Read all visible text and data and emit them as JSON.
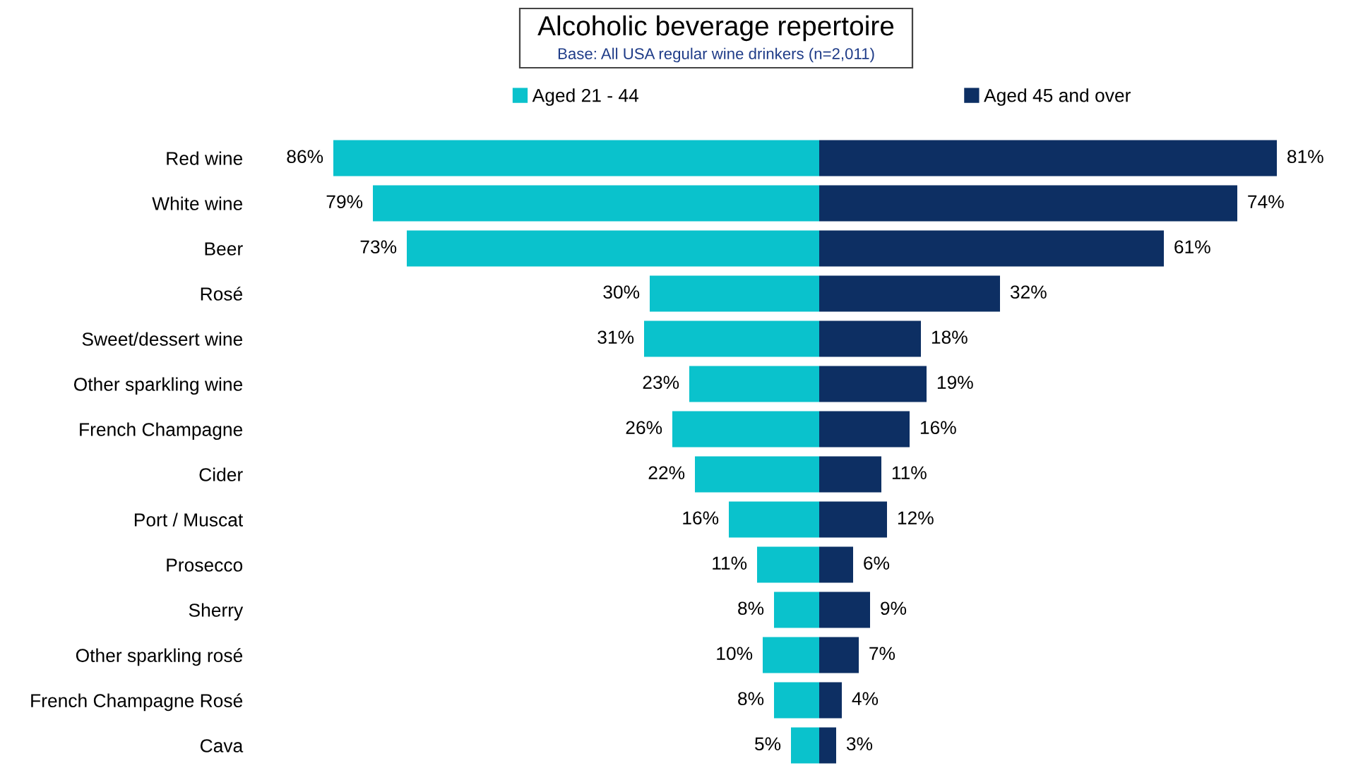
{
  "chart_data": [
    {
      "type": "bar",
      "orientation": "horizontal",
      "title": "Alcoholic beverage repertoire",
      "subtitle": "Base: All USA regular wine drinkers (n=2,011)",
      "categories": [
        "Red wine",
        "White wine",
        "Beer",
        "Rosé",
        "Sweet/dessert wine",
        "Other sparkling wine",
        "French Champagne",
        "Cider",
        "Port / Muscat",
        "Prosecco",
        "Sherry",
        "Other sparkling rosé",
        "French Champagne Rosé",
        "Cava"
      ],
      "xlim": [
        86,
        0
      ],
      "tick_labels": "y",
      "legend": "top",
      "grid": false,
      "series": [
        {
          "name": "Aged 21 - 44",
          "color": "#0ac2cc",
          "values": [
            86,
            79,
            73,
            30,
            31,
            23,
            26,
            22,
            16,
            11,
            8,
            10,
            8,
            5
          ],
          "value_labels": [
            "86%",
            "79%",
            "73%",
            "30%",
            "31%",
            "23%",
            "26%",
            "22%",
            "16%",
            "11%",
            "8%",
            "10%",
            "8%",
            "5%"
          ]
        }
      ]
    },
    {
      "type": "bar",
      "orientation": "horizontal",
      "categories": [
        null,
        null,
        null,
        null,
        null,
        null,
        null,
        null,
        null,
        null,
        null,
        null,
        null,
        null
      ],
      "xlim": [
        0,
        81
      ],
      "legend": "top",
      "grid": false,
      "series": [
        {
          "name": "Aged 45 and over",
          "color": "#0d2f63",
          "values": [
            81,
            74,
            61,
            32,
            18,
            19,
            16,
            11,
            12,
            6,
            9,
            7,
            4,
            3
          ],
          "value_labels": [
            "81%",
            "74%",
            "61%",
            "32%",
            "18%",
            "19%",
            "16%",
            "11%",
            "12%",
            "6%",
            "9%",
            "7%",
            "4%",
            "3%"
          ]
        }
      ]
    }
  ]
}
